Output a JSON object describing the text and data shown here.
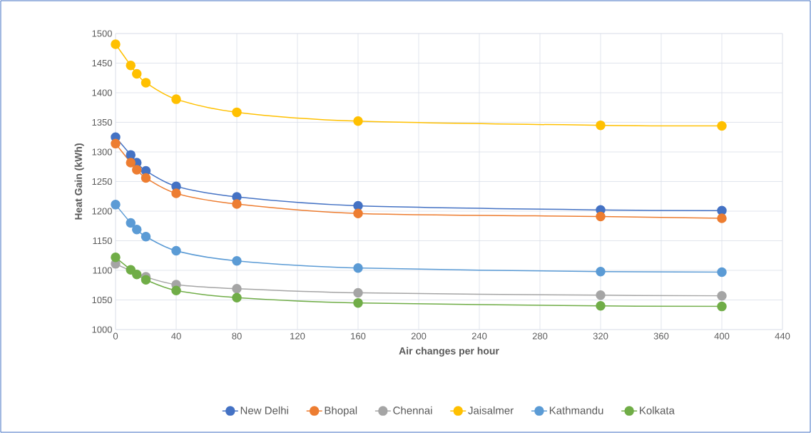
{
  "chart_data": {
    "type": "line",
    "xlabel": "Air changes per hour",
    "ylabel": "Heat Gain (kWh)",
    "x": [
      0,
      10,
      14,
      20,
      40,
      80,
      160,
      320,
      400
    ],
    "series": [
      {
        "name": "New Delhi",
        "color": "#4472c4",
        "values": [
          1325,
          1295,
          1282,
          1268,
          1242,
          1224,
          1209,
          1202,
          1201
        ]
      },
      {
        "name": "Bhopal",
        "color": "#ed7d31",
        "values": [
          1314,
          1282,
          1270,
          1256,
          1230,
          1212,
          1196,
          1191,
          1188
        ]
      },
      {
        "name": "Chennai",
        "color": "#a5a5a5",
        "values": [
          1111,
          null,
          null,
          1089,
          1076,
          1069,
          1062,
          1058,
          1057
        ]
      },
      {
        "name": "Jaisalmer",
        "color": "#ffc000",
        "values": [
          1482,
          1446,
          1432,
          1417,
          1389,
          1367,
          1352,
          1345,
          1344
        ]
      },
      {
        "name": "Kathmandu",
        "color": "#5b9bd5",
        "values": [
          1211,
          1180,
          1169,
          1157,
          1133,
          1116,
          1104,
          1098,
          1097
        ]
      },
      {
        "name": "Kolkata",
        "color": "#70ad47",
        "values": [
          1122,
          1101,
          1093,
          1084,
          1066,
          1054,
          1045,
          1040,
          1039
        ]
      }
    ],
    "xlim": [
      0,
      440
    ],
    "ylim": [
      1000,
      1500
    ],
    "xticks": [
      0,
      40,
      80,
      120,
      160,
      200,
      240,
      280,
      320,
      360,
      400,
      440
    ],
    "yticks": [
      1000,
      1050,
      1100,
      1150,
      1200,
      1250,
      1300,
      1350,
      1400,
      1450,
      1500
    ],
    "grid": true,
    "legend": "bottom",
    "marker": "circle",
    "line_style": "solid"
  }
}
